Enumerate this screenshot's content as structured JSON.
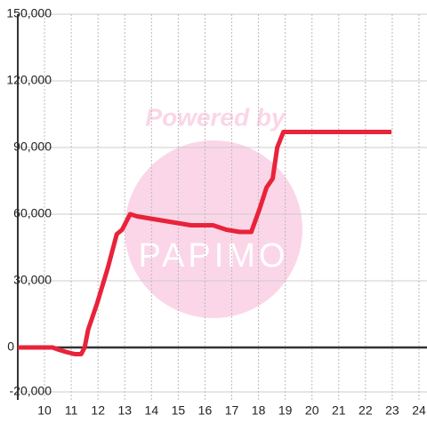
{
  "chart_data": {
    "type": "line",
    "watermark": [
      "Powered by",
      "PAPIMO"
    ],
    "x": [
      9.0,
      10.3,
      10.53,
      10.8,
      11.13,
      11.37,
      11.5,
      11.63,
      11.97,
      12.37,
      12.7,
      12.9,
      13.2,
      13.47,
      13.97,
      14.47,
      14.97,
      15.47,
      15.97,
      16.3,
      16.8,
      17.3,
      17.73,
      18.03,
      18.3,
      18.53,
      18.7,
      18.93,
      22.97
    ],
    "series": [
      {
        "color": "#e8233a",
        "values": [
          0,
          0,
          -1000,
          -2000,
          -3000,
          -3000,
          0,
          8000,
          20000,
          36000,
          51000,
          53000,
          60000,
          59000,
          58000,
          57000,
          56000,
          55000,
          55000,
          55000,
          53000,
          52000,
          52000,
          62000,
          72000,
          76000,
          90000,
          97000,
          97000
        ]
      }
    ],
    "xlim": [
      9,
      24.3
    ],
    "xticks": [
      10,
      11,
      12,
      13,
      14,
      15,
      16,
      17,
      18,
      19,
      20,
      21,
      22,
      23,
      24
    ],
    "ylim": [
      -20000,
      150000
    ],
    "yticks": [
      {
        "value": -20000,
        "label": "-20,000"
      },
      0,
      {
        "value": 30000,
        "label": "30,000"
      },
      {
        "value": 60000,
        "label": "60,000"
      },
      {
        "value": 90000,
        "label": "90,000"
      },
      {
        "value": 120000,
        "label": "120,000"
      },
      {
        "value": 150000,
        "label": "150,000"
      }
    ],
    "grid": true
  }
}
